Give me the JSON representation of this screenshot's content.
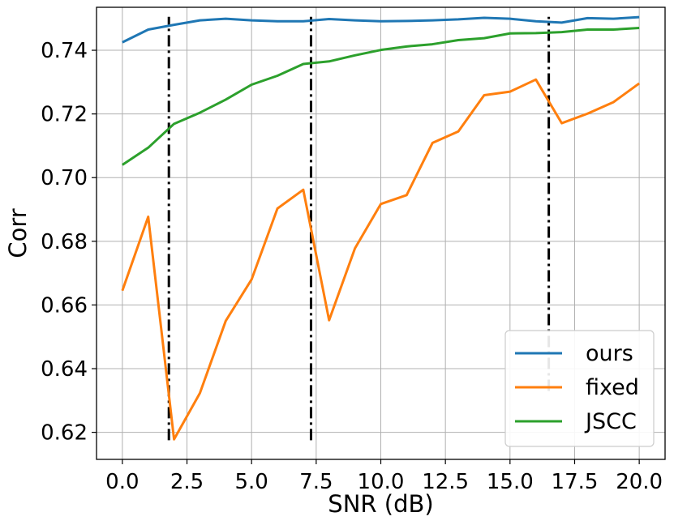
{
  "chart_data": {
    "type": "line",
    "xlabel": "SNR (dB)",
    "ylabel": "Corr",
    "xlim": [
      -1.0,
      21.0
    ],
    "ylim": [
      0.6115,
      0.7535
    ],
    "xticks": [
      0.0,
      2.5,
      5.0,
      7.5,
      10.0,
      12.5,
      15.0,
      17.5,
      20.0
    ],
    "xtick_labels": [
      "0.0",
      "2.5",
      "5.0",
      "7.5",
      "10.0",
      "12.5",
      "15.0",
      "17.5",
      "20.0"
    ],
    "yticks": [
      0.62,
      0.64,
      0.66,
      0.68,
      0.7,
      0.72,
      0.74
    ],
    "ytick_labels": [
      "0.62",
      "0.64",
      "0.66",
      "0.68",
      "0.70",
      "0.72",
      "0.74"
    ],
    "grid": true,
    "legend_position": "bottom-right",
    "x": [
      0,
      1,
      2,
      3,
      4,
      5,
      6,
      7,
      8,
      9,
      10,
      11,
      12,
      13,
      14,
      15,
      16,
      17,
      18,
      19,
      20
    ],
    "series": [
      {
        "name": "ours",
        "color": "#1f77b4",
        "values": [
          0.7425,
          0.7465,
          0.748,
          0.7494,
          0.7499,
          0.7494,
          0.7491,
          0.7491,
          0.7498,
          0.7494,
          0.7491,
          0.7492,
          0.7494,
          0.7497,
          0.7502,
          0.7499,
          0.7491,
          0.7487,
          0.7501,
          0.7499,
          0.7504
        ]
      },
      {
        "name": "fixed",
        "color": "#ff7f0e",
        "values": [
          0.6645,
          0.6877,
          0.6178,
          0.6323,
          0.655,
          0.668,
          0.6903,
          0.6962,
          0.6552,
          0.6778,
          0.6917,
          0.6945,
          0.7109,
          0.7145,
          0.7259,
          0.727,
          0.7308,
          0.7171,
          0.7201,
          0.7237,
          0.7296
        ]
      },
      {
        "name": "JSCC",
        "color": "#2ca02c",
        "values": [
          0.704,
          0.7094,
          0.7169,
          0.7204,
          0.7245,
          0.7292,
          0.732,
          0.7357,
          0.7365,
          0.7384,
          0.7401,
          0.7412,
          0.7419,
          0.7432,
          0.7438,
          0.7453,
          0.7454,
          0.7457,
          0.7465,
          0.7465,
          0.747
        ]
      }
    ],
    "vertical_lines": [
      {
        "x": 1.8,
        "y_range": [
          0.6175,
          0.7505
        ],
        "style": "dash-dot",
        "color": "#000000"
      },
      {
        "x": 7.3,
        "y_range": [
          0.6175,
          0.7505
        ],
        "style": "dash-dot",
        "color": "#000000"
      },
      {
        "x": 16.5,
        "y_range": [
          0.633,
          0.7505
        ],
        "style": "dash-dot",
        "color": "#000000"
      }
    ]
  }
}
